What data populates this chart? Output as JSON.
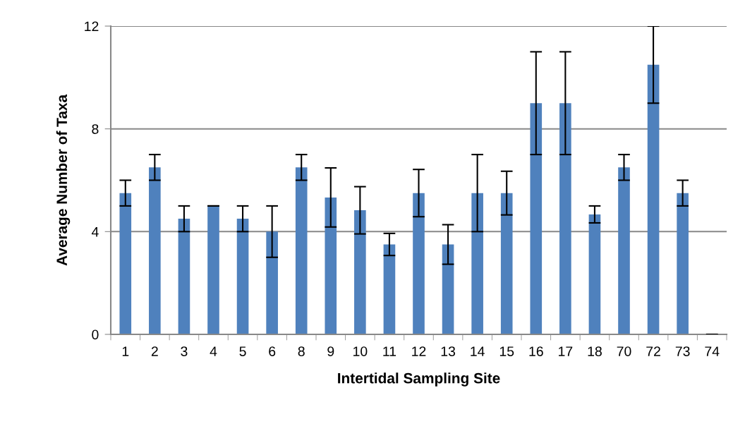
{
  "chart_data": {
    "type": "bar",
    "xlabel": "Intertidal Sampling Site",
    "ylabel": "Average Number of Taxa",
    "categories": [
      "1",
      "2",
      "3",
      "4",
      "5",
      "6",
      "8",
      "9",
      "10",
      "11",
      "12",
      "13",
      "14",
      "15",
      "16",
      "17",
      "18",
      "70",
      "72",
      "73",
      "74"
    ],
    "values": [
      5.5,
      6.5,
      4.5,
      5,
      4.5,
      4,
      6.5,
      5.33,
      4.83,
      3.5,
      5.5,
      3.5,
      5.5,
      5.5,
      9,
      9,
      4.67,
      6.5,
      10.5,
      5.5,
      0
    ],
    "errors": [
      0.5,
      0.5,
      0.5,
      0,
      0.5,
      1,
      0.5,
      1.15,
      0.92,
      0.43,
      0.92,
      0.77,
      1.5,
      0.85,
      2,
      2,
      0.33,
      0.5,
      1.5,
      0.5,
      0
    ],
    "color": "#4f81bd",
    "ylim": [
      0,
      12
    ],
    "yticks": [
      0,
      4,
      8,
      12
    ],
    "grid": "y"
  }
}
